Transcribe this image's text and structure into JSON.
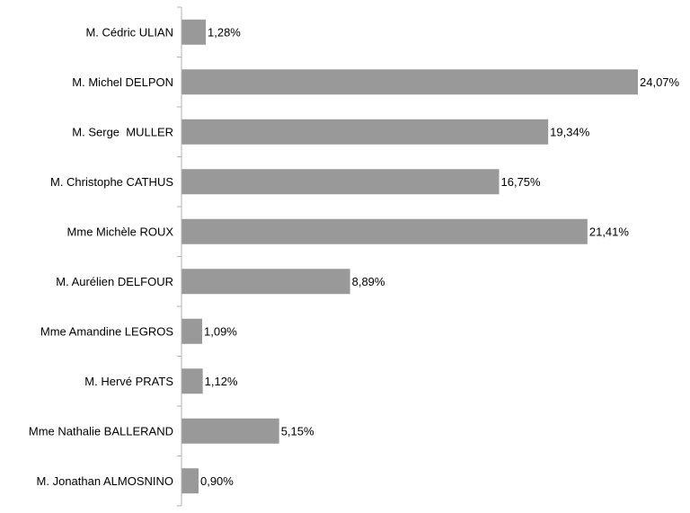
{
  "chart_data": {
    "type": "bar",
    "orientation": "horizontal",
    "categories": [
      "M. Cédric ULIAN",
      "M. Michel DELPON",
      "M. Serge  MULLER",
      "M. Christophe CATHUS",
      "Mme Michèle ROUX",
      "M. Aurélien DELFOUR",
      "Mme Amandine LEGROS",
      "M. Hervé PRATS",
      "Mme Nathalie BALLERAND",
      "M. Jonathan ALMOSNINO"
    ],
    "values": [
      1.28,
      24.07,
      19.34,
      16.75,
      21.41,
      8.89,
      1.09,
      1.12,
      5.15,
      0.9
    ],
    "value_labels": [
      "1,28%",
      "24,07%",
      "19,34%",
      "16,75%",
      "21,41%",
      "8,89%",
      "1,09%",
      "1,12%",
      "5,15%",
      "0,90%"
    ],
    "title": "",
    "xlabel": "",
    "ylabel": "",
    "xlim": [
      0,
      24.07
    ],
    "grid": false,
    "legend": "none",
    "bar_color": "#999999",
    "axis_color": "#b3b3b3"
  }
}
